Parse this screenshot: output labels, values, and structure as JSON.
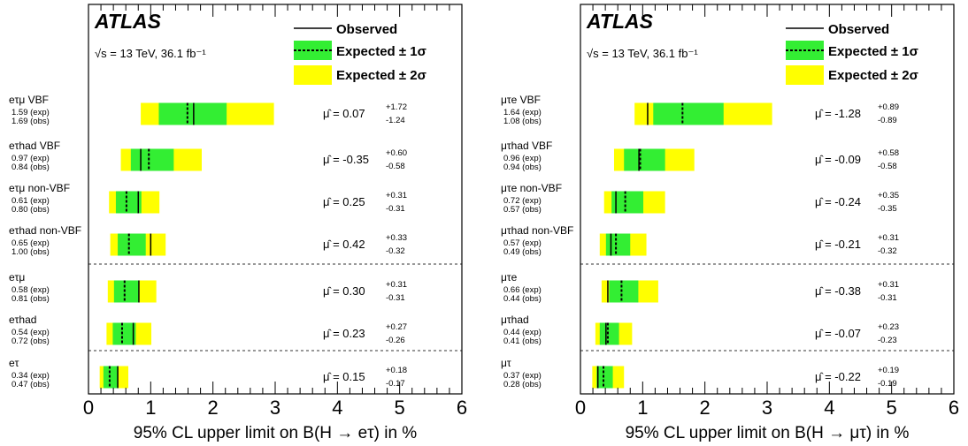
{
  "chart_data": [
    {
      "type": "limit-plot",
      "atlas_label": "ATLAS",
      "energy_label": "√s = 13 TeV, 36.1 fb⁻¹",
      "legend": {
        "observed": "Observed",
        "expected_1s": "Expected ± 1σ",
        "expected_2s": "Expected ± 2σ",
        "placement": "top-right"
      },
      "xlabel": "95% CL upper limit on B(H → eτ) in %",
      "xlim": [
        0,
        6
      ],
      "xticks": [
        "0",
        "1",
        "2",
        "3",
        "4",
        "5",
        "6"
      ],
      "colors": {
        "one_sigma": "#33ee33",
        "two_sigma": "#ffff00",
        "line": "#000000"
      },
      "rows": [
        {
          "label": "eτμ VBF",
          "exp_text": "1.59 (exp)",
          "obs_text": "1.69 (obs)",
          "mu_text": "μ̂ = 0.07",
          "mu_up": "+1.72",
          "mu_down": "-1.24",
          "expected": 1.59,
          "observed": 1.69,
          "one_sigma": [
            1.13,
            2.22
          ],
          "two_sigma": [
            0.84,
            2.98
          ]
        },
        {
          "label": "eτhad VBF",
          "exp_text": "0.97 (exp)",
          "obs_text": "0.84 (obs)",
          "mu_text": "μ̂ = -0.35",
          "mu_up": "+0.60",
          "mu_down": "-0.58",
          "expected": 0.97,
          "observed": 0.84,
          "one_sigma": [
            0.68,
            1.37
          ],
          "two_sigma": [
            0.52,
            1.82
          ]
        },
        {
          "label": "eτμ non-VBF",
          "exp_text": "0.61 (exp)",
          "obs_text": "0.80 (obs)",
          "mu_text": "μ̂ = 0.25",
          "mu_up": "+0.31",
          "mu_down": "-0.31",
          "expected": 0.61,
          "observed": 0.8,
          "one_sigma": [
            0.44,
            0.85
          ],
          "two_sigma": [
            0.33,
            1.14
          ]
        },
        {
          "label": "eτhad non-VBF",
          "exp_text": "0.65 (exp)",
          "obs_text": "1.00 (obs)",
          "mu_text": "μ̂ = 0.42",
          "mu_up": "+0.33",
          "mu_down": "-0.32",
          "expected": 0.65,
          "observed": 1.0,
          "one_sigma": [
            0.47,
            0.92
          ],
          "two_sigma": [
            0.35,
            1.24
          ]
        },
        {
          "label": "eτμ",
          "exp_text": "0.58 (exp)",
          "obs_text": "0.81 (obs)",
          "mu_text": "μ̂ = 0.30",
          "mu_up": "+0.31",
          "mu_down": "-0.31",
          "expected": 0.58,
          "observed": 0.81,
          "one_sigma": [
            0.41,
            0.81
          ],
          "two_sigma": [
            0.31,
            1.09
          ]
        },
        {
          "label": "eτhad",
          "exp_text": "0.54 (exp)",
          "obs_text": "0.72 (obs)",
          "mu_text": "μ̂ = 0.23",
          "mu_up": "+0.27",
          "mu_down": "-0.26",
          "expected": 0.54,
          "observed": 0.72,
          "one_sigma": [
            0.39,
            0.76
          ],
          "two_sigma": [
            0.29,
            1.01
          ]
        },
        {
          "label": "eτ",
          "exp_text": "0.34 (exp)",
          "obs_text": "0.47 (obs)",
          "mu_text": "μ̂ = 0.15",
          "mu_up": "+0.18",
          "mu_down": "-0.17",
          "expected": 0.34,
          "observed": 0.47,
          "one_sigma": [
            0.24,
            0.48
          ],
          "two_sigma": [
            0.18,
            0.64
          ]
        }
      ]
    },
    {
      "type": "limit-plot",
      "atlas_label": "ATLAS",
      "energy_label": "√s = 13 TeV, 36.1 fb⁻¹",
      "legend": {
        "observed": "Observed",
        "expected_1s": "Expected ± 1σ",
        "expected_2s": "Expected ± 2σ",
        "placement": "top-right"
      },
      "xlabel": "95% CL upper limit on B(H → μτ) in %",
      "xlim": [
        0,
        6
      ],
      "xticks": [
        "0",
        "1",
        "2",
        "3",
        "4",
        "5",
        "6"
      ],
      "colors": {
        "one_sigma": "#33ee33",
        "two_sigma": "#ffff00",
        "line": "#000000"
      },
      "rows": [
        {
          "label": "μτe VBF",
          "exp_text": "1.64 (exp)",
          "obs_text": "1.08 (obs)",
          "mu_text": "μ̂ = -1.28",
          "mu_up": "+0.89",
          "mu_down": "-0.89",
          "expected": 1.64,
          "observed": 1.08,
          "one_sigma": [
            1.17,
            2.3
          ],
          "two_sigma": [
            0.87,
            3.08
          ]
        },
        {
          "label": "μτhad VBF",
          "exp_text": "0.96 (exp)",
          "obs_text": "0.94 (obs)",
          "mu_text": "μ̂ = -0.09",
          "mu_up": "+0.58",
          "mu_down": "-0.58",
          "expected": 0.96,
          "observed": 0.94,
          "one_sigma": [
            0.7,
            1.36
          ],
          "two_sigma": [
            0.54,
            1.83
          ]
        },
        {
          "label": "μτe non-VBF",
          "exp_text": "0.72 (exp)",
          "obs_text": "0.57 (obs)",
          "mu_text": "μ̂ = -0.24",
          "mu_up": "+0.35",
          "mu_down": "-0.35",
          "expected": 0.72,
          "observed": 0.57,
          "one_sigma": [
            0.5,
            1.01
          ],
          "two_sigma": [
            0.38,
            1.36
          ]
        },
        {
          "label": "μτhad non-VBF",
          "exp_text": "0.57 (exp)",
          "obs_text": "0.49 (obs)",
          "mu_text": "μ̂ = -0.21",
          "mu_up": "+0.31",
          "mu_down": "-0.32",
          "expected": 0.57,
          "observed": 0.49,
          "one_sigma": [
            0.41,
            0.8
          ],
          "two_sigma": [
            0.31,
            1.06
          ]
        },
        {
          "label": "μτe",
          "exp_text": "0.66 (exp)",
          "obs_text": "0.44 (obs)",
          "mu_text": "μ̂ = -0.38",
          "mu_up": "+0.31",
          "mu_down": "-0.31",
          "expected": 0.66,
          "observed": 0.44,
          "one_sigma": [
            0.46,
            0.93
          ],
          "two_sigma": [
            0.34,
            1.25
          ]
        },
        {
          "label": "μτhad",
          "exp_text": "0.44 (exp)",
          "obs_text": "0.41 (obs)",
          "mu_text": "μ̂ = -0.07",
          "mu_up": "+0.23",
          "mu_down": "-0.23",
          "expected": 0.44,
          "observed": 0.41,
          "one_sigma": [
            0.31,
            0.62
          ],
          "two_sigma": [
            0.24,
            0.83
          ]
        },
        {
          "label": "μτ",
          "exp_text": "0.37 (exp)",
          "obs_text": "0.28 (obs)",
          "mu_text": "μ̂ = -0.22",
          "mu_up": "+0.19",
          "mu_down": "-0.19",
          "expected": 0.37,
          "observed": 0.28,
          "one_sigma": [
            0.26,
            0.52
          ],
          "two_sigma": [
            0.19,
            0.7
          ]
        }
      ]
    }
  ]
}
